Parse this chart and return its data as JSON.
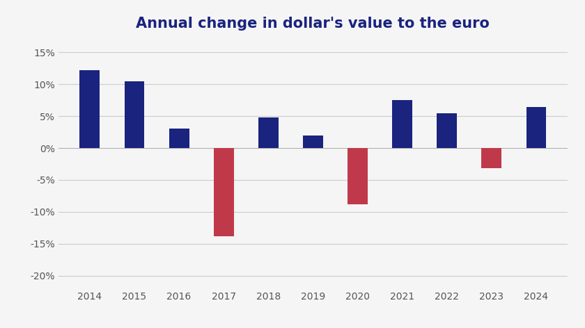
{
  "title": "Annual change in dollar's value to the euro",
  "years": [
    2014,
    2015,
    2016,
    2017,
    2018,
    2019,
    2020,
    2021,
    2022,
    2023,
    2024
  ],
  "values": [
    12.2,
    10.4,
    3.0,
    -13.8,
    4.8,
    2.0,
    -8.8,
    7.5,
    5.4,
    -3.2,
    6.4
  ],
  "bar_colors_positive": "#1a237e",
  "bar_colors_negative": "#c0394b",
  "ylim": [
    -22,
    17
  ],
  "yticks": [
    -20,
    -15,
    -10,
    -5,
    0,
    5,
    10,
    15
  ],
  "background_color": "#f5f5f5",
  "grid_color": "#cccccc",
  "title_color": "#1a237e",
  "title_fontsize": 15,
  "tick_label_color": "#555555",
  "bar_width": 0.45
}
